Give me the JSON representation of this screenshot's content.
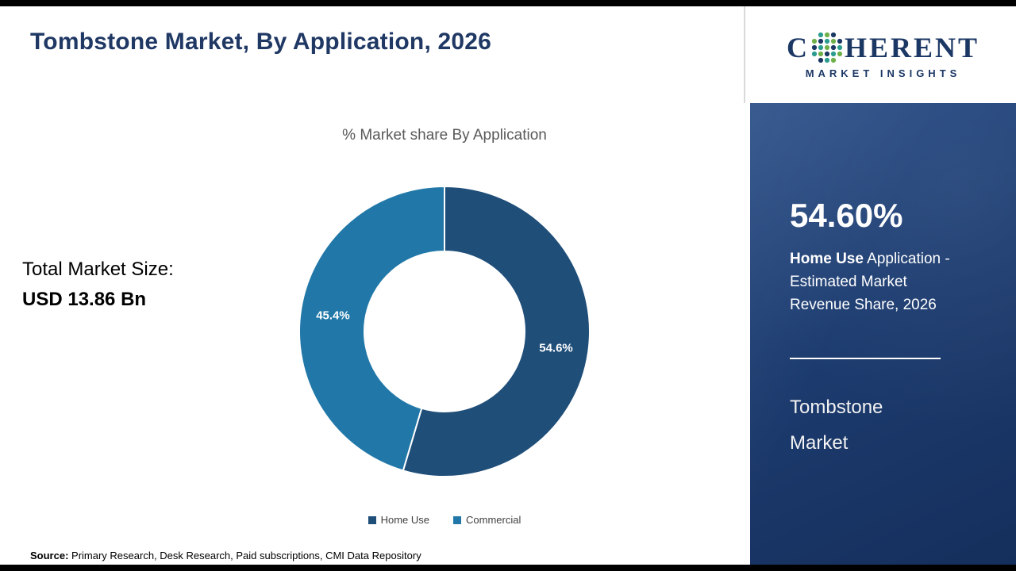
{
  "header": {
    "title": "Tombstone Market, By Application, 2026"
  },
  "logo": {
    "brand_start": "C",
    "brand_end": "HERENT",
    "subtitle": "MARKET INSIGHTS"
  },
  "left_panel": {
    "total_label": "Total Market Size:",
    "total_value": "USD 13.86 Bn"
  },
  "chart_data": {
    "type": "pie",
    "donut": true,
    "title": "% Market share By Application",
    "categories": [
      "Home Use",
      "Commercial"
    ],
    "values": [
      54.6,
      45.4
    ],
    "labels": [
      "54.6%",
      "45.4%"
    ],
    "colors": [
      "#1f4e79",
      "#2178a8"
    ],
    "legend_position": "bottom"
  },
  "sidebar": {
    "stat_value": "54.60%",
    "stat_bold": "Home Use",
    "stat_rest": " Application - Estimated Market Revenue Share, 2026",
    "market_line1": "Tombstone",
    "market_line2": "Market"
  },
  "footer": {
    "source_label": "Source:",
    "source_text": " Primary Research, Desk Research, Paid subscriptions, CMI Data Repository"
  }
}
